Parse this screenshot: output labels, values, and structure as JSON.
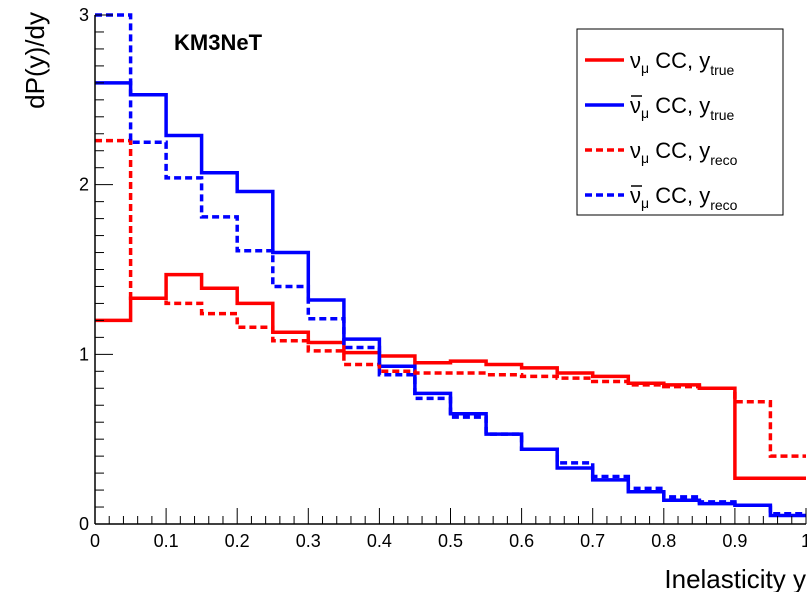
{
  "chart_data": {
    "type": "line",
    "title": "",
    "experiment_label": "KM3NeT",
    "xlabel": "Inelasticity y",
    "ylabel": "dP(y)/dy",
    "xlim": [
      0,
      1
    ],
    "ylim": [
      0,
      3
    ],
    "x_ticks": [
      0,
      0.1,
      0.2,
      0.3,
      0.4,
      0.5,
      0.6,
      0.7,
      0.8,
      0.9,
      1
    ],
    "x_tick_labels": [
      "0",
      "0.1",
      "0.2",
      "0.3",
      "0.4",
      "0.5",
      "0.6",
      "0.7",
      "0.8",
      "0.9",
      "1"
    ],
    "y_ticks": [
      0,
      1,
      2,
      3
    ],
    "y_tick_labels": [
      "0",
      "1",
      "2",
      "3"
    ],
    "bin_edges": [
      0,
      0.05,
      0.1,
      0.15,
      0.2,
      0.25,
      0.3,
      0.35,
      0.4,
      0.45,
      0.5,
      0.55,
      0.6,
      0.65,
      0.7,
      0.75,
      0.8,
      0.85,
      0.9,
      0.95,
      1.0
    ],
    "legend_position": "top-right",
    "grid": false,
    "series": [
      {
        "legend_main": "ν",
        "legend_bar": false,
        "legend_mid": " CC, y",
        "legend_sub1": "μ",
        "legend_sub2": "true",
        "color": "#ff0000",
        "style": "solid",
        "values": [
          1.2,
          1.33,
          1.47,
          1.39,
          1.3,
          1.13,
          1.07,
          1.01,
          0.99,
          0.95,
          0.96,
          0.94,
          0.92,
          0.89,
          0.87,
          0.83,
          0.82,
          0.8,
          0.27,
          0.27
        ]
      },
      {
        "legend_main": "ν",
        "legend_bar": true,
        "legend_mid": " CC, y",
        "legend_sub1": "μ",
        "legend_sub2": "true",
        "color": "#0000ff",
        "style": "solid",
        "values": [
          2.6,
          2.53,
          2.29,
          2.07,
          1.96,
          1.6,
          1.32,
          1.09,
          0.93,
          0.77,
          0.65,
          0.53,
          0.44,
          0.33,
          0.26,
          0.19,
          0.14,
          0.12,
          0.11,
          0.05
        ]
      },
      {
        "legend_main": "ν",
        "legend_bar": false,
        "legend_mid": " CC, y",
        "legend_sub1": "μ",
        "legend_sub2": "reco",
        "color": "#ff0000",
        "style": "dashed",
        "values": [
          2.26,
          1.33,
          1.3,
          1.24,
          1.16,
          1.08,
          1.02,
          0.94,
          0.9,
          0.89,
          0.89,
          0.88,
          0.87,
          0.86,
          0.84,
          0.82,
          0.81,
          0.8,
          0.72,
          0.4
        ]
      },
      {
        "legend_main": "ν",
        "legend_bar": true,
        "legend_mid": " CC, y",
        "legend_sub1": "μ",
        "legend_sub2": "reco",
        "color": "#0000ff",
        "style": "dashed",
        "values": [
          3.0,
          2.25,
          2.04,
          1.81,
          1.61,
          1.4,
          1.21,
          1.04,
          0.88,
          0.74,
          0.63,
          0.53,
          0.44,
          0.36,
          0.28,
          0.21,
          0.16,
          0.13,
          0.11,
          0.06
        ]
      }
    ]
  }
}
